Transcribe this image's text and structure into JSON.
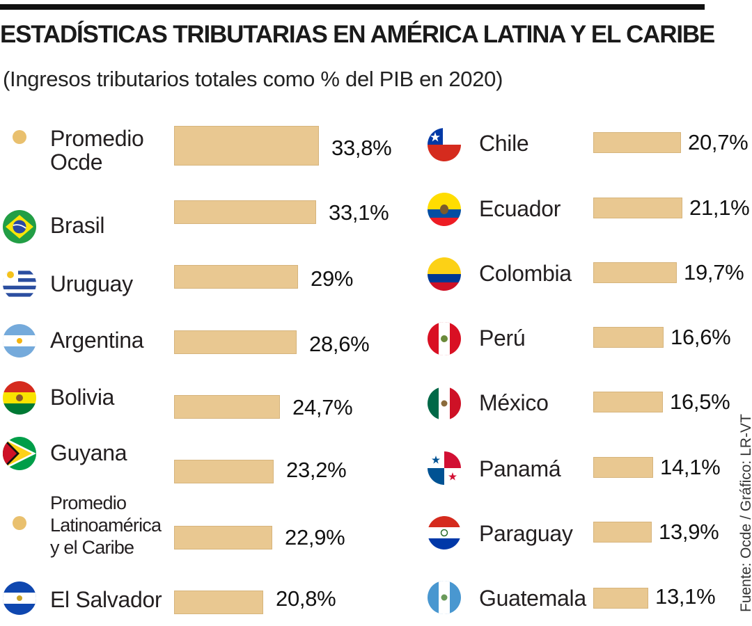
{
  "title": "ESTADÍSTICAS TRIBUTARIAS EN AMÉRICA LATINA Y EL CARIBE",
  "subtitle": "(Ingresos tributarios totales como % del PIB en 2020)",
  "source": "Fuente: Ocde / Gráfico: LR-VT",
  "colors": {
    "bar": "#e9c891",
    "dot": "#e9c06e"
  },
  "chart_data": {
    "type": "bar",
    "orientation": "horizontal",
    "unit": "% del PIB",
    "left": [
      {
        "label": "Promedio Ocde",
        "value": 33.8,
        "display": "33,8%",
        "icon": "dot-icon"
      },
      {
        "label": "Brasil",
        "value": 33.1,
        "display": "33,1%",
        "icon": "brazil-flag-icon"
      },
      {
        "label": "Uruguay",
        "value": 29,
        "display": "29%",
        "icon": "uruguay-flag-icon"
      },
      {
        "label": "Argentina",
        "value": 28.6,
        "display": "28,6%",
        "icon": "argentina-flag-icon"
      },
      {
        "label": "Bolivia",
        "value": 24.7,
        "display": "24,7%",
        "icon": "bolivia-flag-icon"
      },
      {
        "label": "Guyana",
        "value": 23.2,
        "display": "23,2%",
        "icon": "guyana-flag-icon"
      },
      {
        "label": "Promedio Latinoamérica y el Caribe",
        "value": 22.9,
        "display": "22,9%",
        "icon": "dot-icon"
      },
      {
        "label": "El Salvador",
        "value": 20.8,
        "display": "20,8%",
        "icon": "el-salvador-flag-icon"
      }
    ],
    "right": [
      {
        "label": "Chile",
        "value": 20.7,
        "display": "20,7%",
        "icon": "chile-flag-icon"
      },
      {
        "label": "Ecuador",
        "value": 21.1,
        "display": "21,1%",
        "icon": "ecuador-flag-icon"
      },
      {
        "label": "Colombia",
        "value": 19.7,
        "display": "19,7%",
        "icon": "colombia-flag-icon"
      },
      {
        "label": "Perú",
        "value": 16.6,
        "display": "16,6%",
        "icon": "peru-flag-icon"
      },
      {
        "label": "México",
        "value": 16.5,
        "display": "16,5%",
        "icon": "mexico-flag-icon"
      },
      {
        "label": "Panamá",
        "value": 14.1,
        "display": "14,1%",
        "icon": "panama-flag-icon"
      },
      {
        "label": "Paraguay",
        "value": 13.9,
        "display": "13,9%",
        "icon": "paraguay-flag-icon"
      },
      {
        "label": "Guatemala",
        "value": 13.1,
        "display": "13,1%",
        "icon": "guatemala-flag-icon"
      }
    ]
  }
}
